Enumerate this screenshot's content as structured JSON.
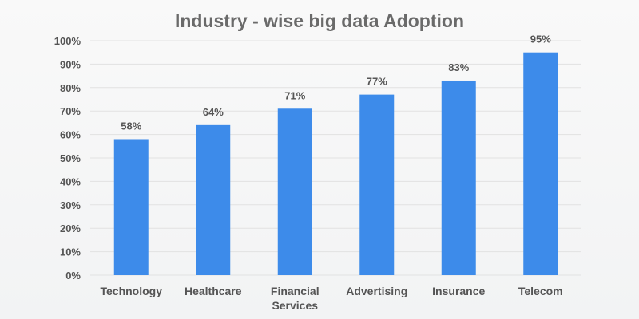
{
  "chart_data": {
    "type": "bar",
    "title": "Industry - wise big data Adoption",
    "xlabel": "",
    "ylabel": "",
    "categories": [
      [
        "Technology"
      ],
      [
        "Healthcare"
      ],
      [
        "Financial",
        "Services"
      ],
      [
        "Advertising"
      ],
      [
        "Insurance"
      ],
      [
        "Telecom"
      ]
    ],
    "values": [
      58,
      64,
      71,
      77,
      83,
      95
    ],
    "value_labels": [
      "58%",
      "64%",
      "71%",
      "77%",
      "83%",
      "95%"
    ],
    "ylim": [
      0,
      100
    ],
    "yticks": [
      "0%",
      "10%",
      "20%",
      "30%",
      "40%",
      "50%",
      "60%",
      "70%",
      "80%",
      "90%",
      "100%"
    ],
    "grid": true,
    "legend": "none",
    "colors": {
      "bar": "#3d8bea",
      "grid": "#e2e2e2",
      "background": "#f7f7f7"
    }
  }
}
